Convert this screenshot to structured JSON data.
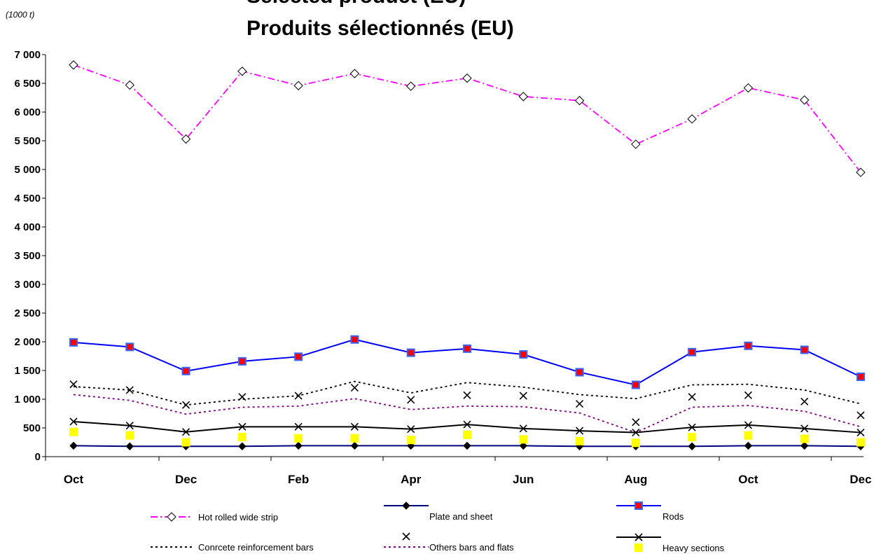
{
  "chart_data": {
    "type": "line",
    "title": "Selected product (EU)",
    "subtitle": "Produits sélectionnés (EU)",
    "unit_label": "(1000 t)",
    "ylim": [
      0,
      7000
    ],
    "y_ticks": [
      "0",
      "500",
      "1 000",
      "1 500",
      "2 000",
      "2 500",
      "3 000",
      "3 500",
      "4 000",
      "4 500",
      "5 000",
      "5 500",
      "6 000",
      "6 500",
      "7 000"
    ],
    "x_labels": [
      "Oct",
      "Dec",
      "Feb",
      "Apr",
      "Jun",
      "Aug",
      "Oct",
      "Dec"
    ],
    "grid": false,
    "legend_position": "bottom",
    "series": [
      {
        "name": "Hot rolled wide strip",
        "color": "#ff00ff",
        "line": "dashdot",
        "marker": "open-diamond",
        "values": [
          6820,
          6470,
          5530,
          6710,
          6460,
          6670,
          6450,
          6590,
          6270,
          6200,
          5440,
          5880,
          6420,
          6210,
          4950
        ]
      },
      {
        "name": "Plate and sheet",
        "color": "#000080",
        "line": "solid",
        "marker": "filled-diamond",
        "values": [
          190,
          180,
          180,
          180,
          190,
          190,
          190,
          190,
          190,
          180,
          180,
          180,
          190,
          190,
          180
        ]
      },
      {
        "name": "Rods",
        "color": "#0000ff",
        "line": "solid",
        "marker": "red-square",
        "values": [
          1990,
          1910,
          1490,
          1660,
          1740,
          2040,
          1810,
          1880,
          1780,
          1470,
          1250,
          1820,
          1930,
          1860,
          1390
        ]
      },
      {
        "name": "Conrcete reinforcement bars",
        "color": "#000000",
        "line": "dotted",
        "marker": "none",
        "values": [
          1220,
          1160,
          900,
          1000,
          1060,
          1310,
          1110,
          1290,
          1210,
          1080,
          1010,
          1250,
          1260,
          1160,
          920
        ]
      },
      {
        "name": "Others bars and flats",
        "color": "#800080",
        "line": "dotted",
        "marker": "none",
        "values": [
          1080,
          980,
          740,
          860,
          880,
          1010,
          820,
          880,
          870,
          760,
          420,
          860,
          890,
          790,
          520
        ]
      },
      {
        "name": "",
        "color": "#000000",
        "line": "none",
        "marker": "x",
        "values": [
          1260,
          1160,
          900,
          1040,
          1060,
          1200,
          990,
          1070,
          1060,
          920,
          600,
          1040,
          1070,
          960,
          720
        ]
      },
      {
        "name": "Heavy sections",
        "color": "#000000",
        "line": "solid",
        "marker": "x",
        "values": [
          610,
          540,
          430,
          520,
          520,
          520,
          480,
          560,
          490,
          450,
          420,
          510,
          550,
          490,
          420
        ]
      },
      {
        "name": "",
        "color": "#ffff00",
        "line": "none",
        "marker": "yellow-square",
        "values": [
          430,
          370,
          250,
          340,
          320,
          320,
          290,
          380,
          300,
          270,
          240,
          340,
          370,
          310,
          250
        ]
      }
    ]
  }
}
